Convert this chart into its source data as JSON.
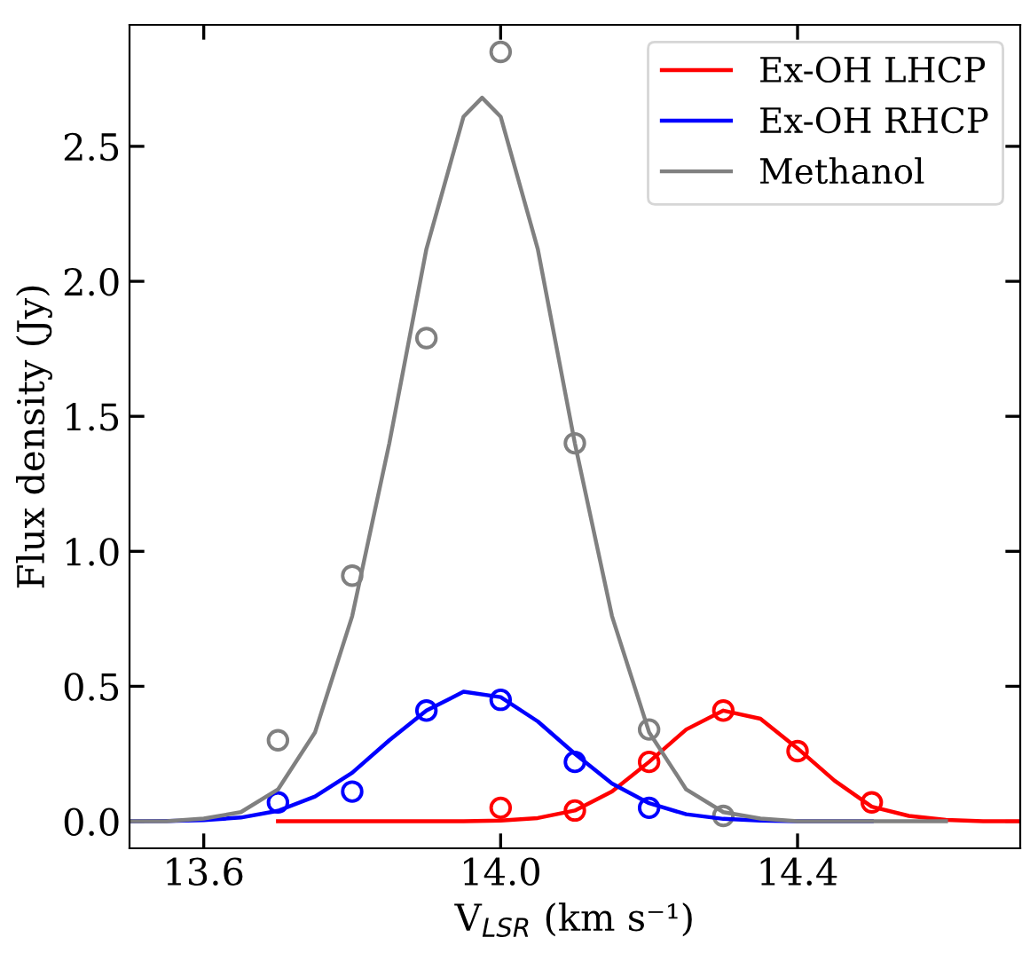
{
  "chart_data": {
    "type": "line",
    "xlabel": "V$_{LSR}$ (km s⁻¹)",
    "ylabel": "Flux density (Jy)",
    "xlim": [
      13.5,
      14.7
    ],
    "ylim": [
      -0.1,
      2.95
    ],
    "xticks": [
      13.6,
      {
        "value": 14,
        "label": "14.0"
      },
      14.4
    ],
    "yticks": [
      {
        "value": 0,
        "label": "0.0"
      },
      0.5,
      {
        "value": 1,
        "label": "1.0"
      },
      1.5,
      {
        "value": 2,
        "label": "2.0"
      },
      2.5
    ],
    "legend": "top right",
    "grid": false,
    "series": [
      {
        "name": "Ex-OH LHCP",
        "color": "#ff0000",
        "x": [
          13.7,
          13.8,
          13.9,
          13.95,
          14.0,
          14.05,
          14.1,
          14.15,
          14.2,
          14.25,
          14.3,
          14.35,
          14.4,
          14.45,
          14.5,
          14.55,
          14.6,
          14.65,
          14.7
        ],
        "values": [
          0.0,
          0.0,
          0.0,
          0.0,
          0.003,
          0.012,
          0.04,
          0.11,
          0.22,
          0.34,
          0.41,
          0.38,
          0.27,
          0.15,
          0.054,
          0.02,
          0.005,
          0.0,
          0.0
        ]
      },
      {
        "name": "Ex-OH RHCP",
        "color": "#0000ff",
        "x": [
          13.5,
          13.55,
          13.6,
          13.65,
          13.7,
          13.75,
          13.8,
          13.85,
          13.9,
          13.95,
          14.0,
          14.05,
          14.1,
          14.15,
          14.2,
          14.25,
          14.3,
          14.35,
          14.4,
          14.45,
          14.5
        ],
        "values": [
          0.0,
          0.001,
          0.004,
          0.014,
          0.039,
          0.092,
          0.18,
          0.3,
          0.41,
          0.48,
          0.46,
          0.37,
          0.25,
          0.14,
          0.067,
          0.026,
          0.009,
          0.003,
          0.0,
          0.0,
          0.0
        ]
      },
      {
        "name": "Methanol",
        "color": "#808080",
        "x": [
          13.5,
          13.55,
          13.6,
          13.65,
          13.7,
          13.75,
          13.8,
          13.85,
          13.9,
          13.95,
          13.975,
          14.0,
          14.05,
          14.1,
          14.15,
          14.2,
          14.25,
          14.3,
          14.35,
          14.4,
          14.5,
          14.6
        ],
        "values": [
          0.0,
          0.0,
          0.01,
          0.034,
          0.118,
          0.33,
          0.76,
          1.4,
          2.12,
          2.61,
          2.68,
          2.61,
          2.12,
          1.4,
          0.76,
          0.33,
          0.118,
          0.034,
          0.01,
          0.0,
          0.0,
          0.0
        ]
      },
      {
        "type": "scatter",
        "marker": "circle",
        "color": "#ff0000",
        "x": [
          14.0,
          14.1,
          14.2,
          14.3,
          14.4,
          14.5
        ],
        "values": [
          0.05,
          0.04,
          0.22,
          0.41,
          0.26,
          0.07
        ]
      },
      {
        "type": "scatter",
        "marker": "circle",
        "color": "#0000ff",
        "x": [
          13.7,
          13.8,
          13.9,
          14.0,
          14.1,
          14.2
        ],
        "values": [
          0.07,
          0.11,
          0.41,
          0.45,
          0.22,
          0.05
        ]
      },
      {
        "type": "scatter",
        "marker": "circle",
        "color": "#808080",
        "x": [
          13.7,
          13.8,
          13.9,
          14.0,
          14.1,
          14.2,
          14.3
        ],
        "values": [
          0.3,
          0.91,
          1.79,
          2.85,
          1.4,
          0.34,
          0.02
        ]
      }
    ]
  }
}
